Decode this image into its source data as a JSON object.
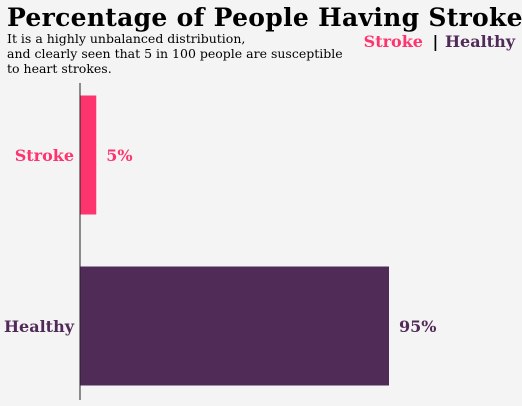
{
  "title": "Percentage of People Having Strokes",
  "subtitle_lines": [
    "It is a highly unbalanced distribution,",
    "and clearly seen that 5 in 100 people are susceptible",
    "to heart strokes."
  ],
  "legend": {
    "items": [
      {
        "label": "Stroke",
        "color": "#fe346e"
      },
      {
        "label": "Healthy",
        "color": "#512b58"
      }
    ],
    "separator": "|"
  },
  "chart_data": {
    "type": "bar",
    "orientation": "horizontal",
    "categories": [
      "Stroke",
      "Healthy"
    ],
    "values": [
      5,
      95
    ],
    "value_labels": [
      "5%",
      "95%"
    ],
    "colors": [
      "#fe346e",
      "#512b58"
    ],
    "xlim": [
      0,
      100
    ],
    "grid": false,
    "legend_position": "top-right"
  }
}
